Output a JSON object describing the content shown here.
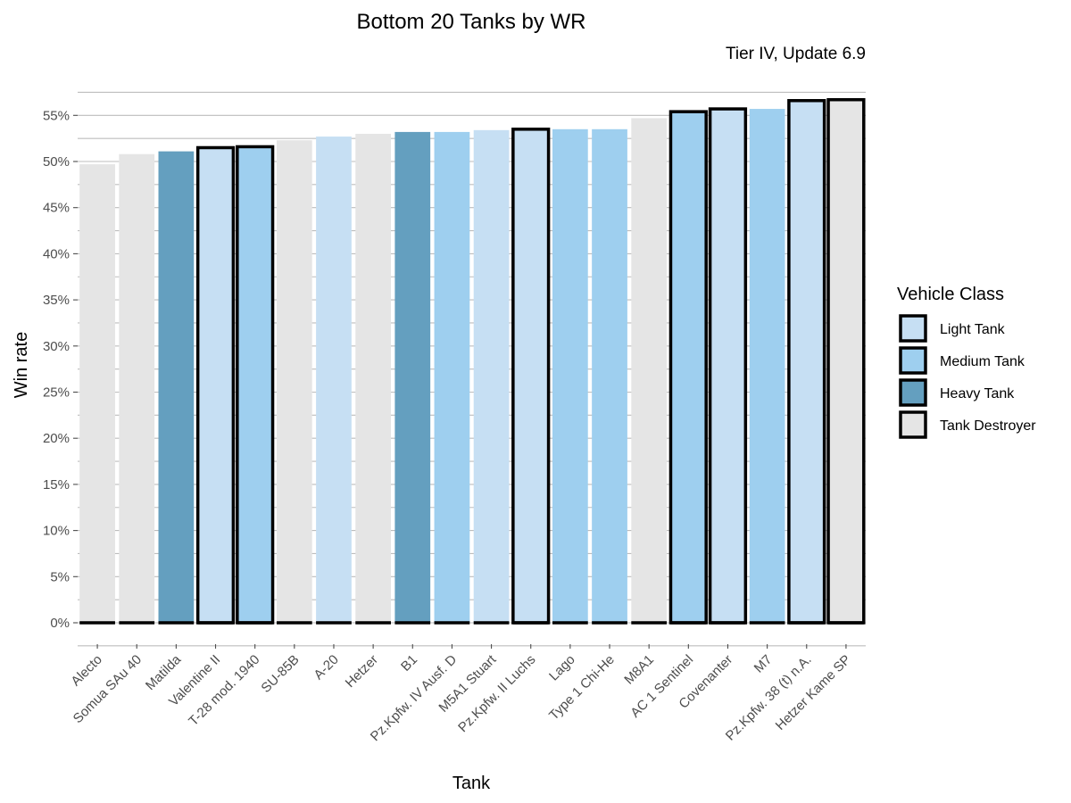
{
  "chart_data": {
    "type": "bar",
    "title": "Bottom 20 Tanks by WR",
    "subtitle": "Tier IV, Update 6.9",
    "xlabel": "Tank",
    "ylabel": "Win rate",
    "ylim": [
      0,
      0.57
    ],
    "y_ticks": [
      {
        "value": 0.0,
        "label": "0%"
      },
      {
        "value": 0.05,
        "label": "5%"
      },
      {
        "value": 0.1,
        "label": "10%"
      },
      {
        "value": 0.15,
        "label": "15%"
      },
      {
        "value": 0.2,
        "label": "20%"
      },
      {
        "value": 0.25,
        "label": "25%"
      },
      {
        "value": 0.3,
        "label": "30%"
      },
      {
        "value": 0.35,
        "label": "35%"
      },
      {
        "value": 0.4,
        "label": "40%"
      },
      {
        "value": 0.45,
        "label": "45%"
      },
      {
        "value": 0.5,
        "label": "50%"
      },
      {
        "value": 0.55,
        "label": "55%"
      }
    ],
    "grid": true,
    "legend": {
      "title": "Vehicle Class",
      "position": "right",
      "entries": [
        {
          "key": "light",
          "label": "Light Tank",
          "color": "#c6dff3"
        },
        {
          "key": "medium",
          "label": "Medium Tank",
          "color": "#9ecfef"
        },
        {
          "key": "heavy",
          "label": "Heavy Tank",
          "color": "#649fbf"
        },
        {
          "key": "td",
          "label": "Tank Destroyer",
          "color": "#e5e5e5"
        }
      ]
    },
    "bars": [
      {
        "tank": "Alecto",
        "value": 0.497,
        "class": "td",
        "outlined": false
      },
      {
        "tank": "Somua SAu 40",
        "value": 0.508,
        "class": "td",
        "outlined": false
      },
      {
        "tank": "Matilda",
        "value": 0.511,
        "class": "heavy",
        "outlined": false
      },
      {
        "tank": "Valentine II",
        "value": 0.515,
        "class": "light",
        "outlined": true
      },
      {
        "tank": "T-28 mod. 1940",
        "value": 0.516,
        "class": "medium",
        "outlined": true
      },
      {
        "tank": "SU-85B",
        "value": 0.523,
        "class": "td",
        "outlined": false
      },
      {
        "tank": "A-20",
        "value": 0.527,
        "class": "light",
        "outlined": false
      },
      {
        "tank": "Hetzer",
        "value": 0.53,
        "class": "td",
        "outlined": false
      },
      {
        "tank": "B1",
        "value": 0.532,
        "class": "heavy",
        "outlined": false
      },
      {
        "tank": "Pz.Kpfw. IV Ausf. D",
        "value": 0.532,
        "class": "medium",
        "outlined": false
      },
      {
        "tank": "M5A1 Stuart",
        "value": 0.534,
        "class": "light",
        "outlined": false
      },
      {
        "tank": "Pz.Kpfw. II Luchs",
        "value": 0.535,
        "class": "light",
        "outlined": true
      },
      {
        "tank": "Lago",
        "value": 0.535,
        "class": "medium",
        "outlined": false
      },
      {
        "tank": "Type 1 Chi-He",
        "value": 0.535,
        "class": "medium",
        "outlined": false
      },
      {
        "tank": "M8A1",
        "value": 0.547,
        "class": "td",
        "outlined": false
      },
      {
        "tank": "AC 1 Sentinel",
        "value": 0.554,
        "class": "medium",
        "outlined": true
      },
      {
        "tank": "Covenanter",
        "value": 0.557,
        "class": "light",
        "outlined": true
      },
      {
        "tank": "M7",
        "value": 0.557,
        "class": "medium",
        "outlined": false
      },
      {
        "tank": "Pz.Kpfw. 38 (t) n.A.",
        "value": 0.566,
        "class": "light",
        "outlined": true
      },
      {
        "tank": "Hetzer Kame SP",
        "value": 0.567,
        "class": "td",
        "outlined": true
      }
    ]
  }
}
